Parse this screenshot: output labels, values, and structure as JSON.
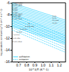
{
  "chart_data": {
    "type": "line",
    "x_label": "10^3/T (K^-1)",
    "y_label": "log parabolic constant (g^2 cm^-4 s^-1)",
    "xlim": [
      0.62,
      1.28
    ],
    "ylim": [
      -16,
      -6
    ],
    "xticks": [
      0.7,
      0.8,
      0.9,
      {
        "value": 1.0,
        "label": "1.0"
      },
      1.1,
      1.2
    ],
    "yticks": [
      -6,
      -8,
      -10,
      -12,
      -14,
      -16
    ],
    "legend": "lower left",
    "series": [
      {
        "name": "sulfidation",
        "color": "#00c8ff",
        "line_style": "solid",
        "x": [
          0.62,
          1.28
        ],
        "values": [
          [
            -6.0,
            -8.97
          ],
          [
            -6.27,
            -9.24
          ],
          [
            -6.53,
            -9.5
          ],
          [
            -6.8,
            -9.77
          ],
          [
            -7.07,
            -10.04
          ],
          [
            -7.33,
            -10.3
          ],
          [
            -7.6,
            -10.57
          ],
          [
            -7.87,
            -10.84
          ],
          [
            -8.13,
            -11.1
          ],
          [
            -8.4,
            -11.37
          ],
          [
            -8.67,
            -11.64
          ],
          [
            -8.93,
            -11.9
          ],
          [
            -9.2,
            -12.17
          ],
          [
            -9.47,
            -12.44
          ],
          [
            -9.73,
            -12.7
          ],
          [
            -10.0,
            -12.97
          ]
        ]
      },
      {
        "name": "oxidation",
        "color": "#00c8ff",
        "line_style": "dashed",
        "x": [
          0.62,
          1.28
        ],
        "values": [
          [
            -7.8,
            -11.628
          ],
          [
            -8.2,
            -12.028
          ],
          [
            -8.6,
            -12.428
          ],
          [
            -9.0,
            -12.828
          ],
          [
            -9.4,
            -13.228
          ],
          [
            -9.8,
            -13.628
          ],
          [
            -10.2,
            -14.028
          ],
          [
            -10.6,
            -14.428
          ]
        ]
      }
    ],
    "annotations": [
      {
        "x": 0.63,
        "y": -6.05,
        "text": "Fe-100(Cr-4Mo)"
      },
      {
        "x": 0.63,
        "y": -6.32,
        "text": "Co-25Cr-3548"
      },
      {
        "x": 0.63,
        "y": -6.58,
        "text": "Fe-10Cr-2Mo4"
      },
      {
        "x": 0.63,
        "y": -6.85,
        "text": "Fe-10Cr"
      },
      {
        "x": 0.63,
        "y": -7.12,
        "text": "Ni-50Cr"
      },
      {
        "x": 0.63,
        "y": -7.38,
        "text": "Fe-30Cr"
      },
      {
        "x": 0.63,
        "y": -7.65,
        "text": "Co-55Cr"
      },
      {
        "x": 0.63,
        "y": -7.92,
        "text": "Fe-10Cr2Mo40"
      },
      {
        "x": 0.63,
        "y": -8.18,
        "text": "Fe-30Cr-4Mo"
      },
      {
        "x": 0.63,
        "y": -8.45,
        "text": "Ni-50Cr4Mo"
      },
      {
        "x": 0.63,
        "y": -8.72,
        "text": "Fe-30Cr-4Mo4"
      },
      {
        "x": 1.12,
        "y": -8.3,
        "text": "Ni-4Cr"
      },
      {
        "x": 1.12,
        "y": -8.65,
        "text": "Ni-TCr"
      },
      {
        "x": 1.12,
        "y": -9.05,
        "text": "Ni-allbee"
      },
      {
        "x": 1.12,
        "y": -9.45,
        "text": "Co-4Cr"
      },
      {
        "x": 0.82,
        "y": -9.6,
        "text": "Mo"
      },
      {
        "x": 0.78,
        "y": -10.05,
        "text": "Fe-30Mo-4Mo"
      },
      {
        "x": 0.72,
        "y": -10.55,
        "text": "Fe-30Cr4o"
      },
      {
        "x": 0.68,
        "y": -11.0,
        "text": "Au-Mo4"
      },
      {
        "x": 0.64,
        "y": -11.5,
        "text": "Fe-30Cr4"
      },
      {
        "x": 0.63,
        "y": -12.1,
        "text": "Ni-4Cr-4Mo"
      },
      {
        "x": 0.63,
        "y": -12.6,
        "text": "Ni-40Cr-6Mo4"
      }
    ]
  }
}
